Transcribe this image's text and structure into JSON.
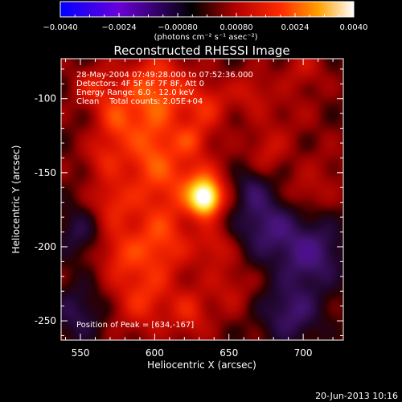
{
  "chart_data": {
    "type": "heatmap",
    "title": "Reconstructed RHESSI Image",
    "xlabel": "Heliocentric X (arcsec)",
    "ylabel": "Heliocentric Y (arcsec)",
    "xlim": [
      537,
      727
    ],
    "ylim": [
      -263,
      -73
    ],
    "xticks": [
      550,
      600,
      650,
      700
    ],
    "yticks": [
      -100,
      -150,
      -200,
      -250
    ],
    "colorbar": {
      "range": [
        -0.004,
        0.004
      ],
      "tick_labels": [
        "−0.0040",
        "−0.0024",
        "−0.00080",
        "0.00080",
        "0.0024",
        "0.0040"
      ],
      "units_label": "(photons cm⁻² s⁻¹ asec⁻²)",
      "colormap": [
        "#0000ff",
        "#7a00d8",
        "#000000",
        "#b00000",
        "#ff2000",
        "#ff9a00",
        "#ffff80",
        "#ffffff"
      ]
    },
    "annotations": [
      "28-May-2004 07:49:28.000 to 07:52:36.000",
      "Detectors: 4F 5F 6F 7F 8F, Att 0",
      "Energy Range: 6.0 - 12.0 keV",
      "Clean    Total counts: 2.05E+04"
    ],
    "peak_label": "Position of Peak = [634,-167]",
    "peak": {
      "x": 634,
      "y": -167,
      "value": 0.004
    },
    "features": [
      {
        "x": 634,
        "y": -167,
        "sx": 7,
        "sy": 8,
        "value": 0.0034
      },
      {
        "x": 628,
        "y": -158,
        "sx": 14,
        "sy": 14,
        "value": 0.0012
      },
      {
        "x": 600,
        "y": -95,
        "sx": 16,
        "sy": 18,
        "value": 0.0016
      },
      {
        "x": 598,
        "y": -140,
        "sx": 14,
        "sy": 20,
        "value": 0.0015
      },
      {
        "x": 603,
        "y": -195,
        "sx": 15,
        "sy": 18,
        "value": 0.0014
      },
      {
        "x": 592,
        "y": -235,
        "sx": 14,
        "sy": 16,
        "value": 0.0011
      },
      {
        "x": 574,
        "y": -115,
        "sx": 9,
        "sy": 12,
        "value": 0.0011
      },
      {
        "x": 565,
        "y": -140,
        "sx": 9,
        "sy": 10,
        "value": 0.0008
      },
      {
        "x": 572,
        "y": -170,
        "sx": 10,
        "sy": 12,
        "value": 0.001
      },
      {
        "x": 576,
        "y": -205,
        "sx": 10,
        "sy": 12,
        "value": 0.0009
      },
      {
        "x": 560,
        "y": -93,
        "sx": 10,
        "sy": 10,
        "value": 0.0009
      },
      {
        "x": 635,
        "y": -105,
        "sx": 11,
        "sy": 12,
        "value": 0.001
      },
      {
        "x": 625,
        "y": -128,
        "sx": 8,
        "sy": 8,
        "value": 0.0009
      },
      {
        "x": 665,
        "y": -95,
        "sx": 9,
        "sy": 10,
        "value": 0.0007
      },
      {
        "x": 676,
        "y": -135,
        "sx": 9,
        "sy": 11,
        "value": 0.0007
      },
      {
        "x": 640,
        "y": -200,
        "sx": 9,
        "sy": 10,
        "value": 0.0008
      },
      {
        "x": 650,
        "y": -228,
        "sx": 11,
        "sy": 12,
        "value": 0.0006
      },
      {
        "x": 624,
        "y": -245,
        "sx": 9,
        "sy": 12,
        "value": 0.0009
      },
      {
        "x": 700,
        "y": -80,
        "sx": 10,
        "sy": 10,
        "value": 0.0006
      },
      {
        "x": 690,
        "y": -110,
        "sx": 14,
        "sy": 12,
        "value": 0.0003
      },
      {
        "x": 715,
        "y": -150,
        "sx": 12,
        "sy": 14,
        "value": 0.0003
      },
      {
        "x": 705,
        "y": -205,
        "sx": 16,
        "sy": 16,
        "value": -0.0014
      },
      {
        "x": 675,
        "y": -185,
        "sx": 14,
        "sy": 15,
        "value": -0.0012
      },
      {
        "x": 692,
        "y": -245,
        "sx": 14,
        "sy": 14,
        "value": -0.0012
      },
      {
        "x": 700,
        "y": -165,
        "sx": 9,
        "sy": 9,
        "value": 0.0005
      },
      {
        "x": 548,
        "y": -190,
        "sx": 10,
        "sy": 12,
        "value": -0.0008
      },
      {
        "x": 548,
        "y": -245,
        "sx": 12,
        "sy": 14,
        "value": -0.0009
      },
      {
        "x": 665,
        "y": -160,
        "sx": 8,
        "sy": 10,
        "value": -0.0008
      }
    ]
  },
  "footer": {
    "timestamp": "20-Jun-2013 10:16"
  }
}
